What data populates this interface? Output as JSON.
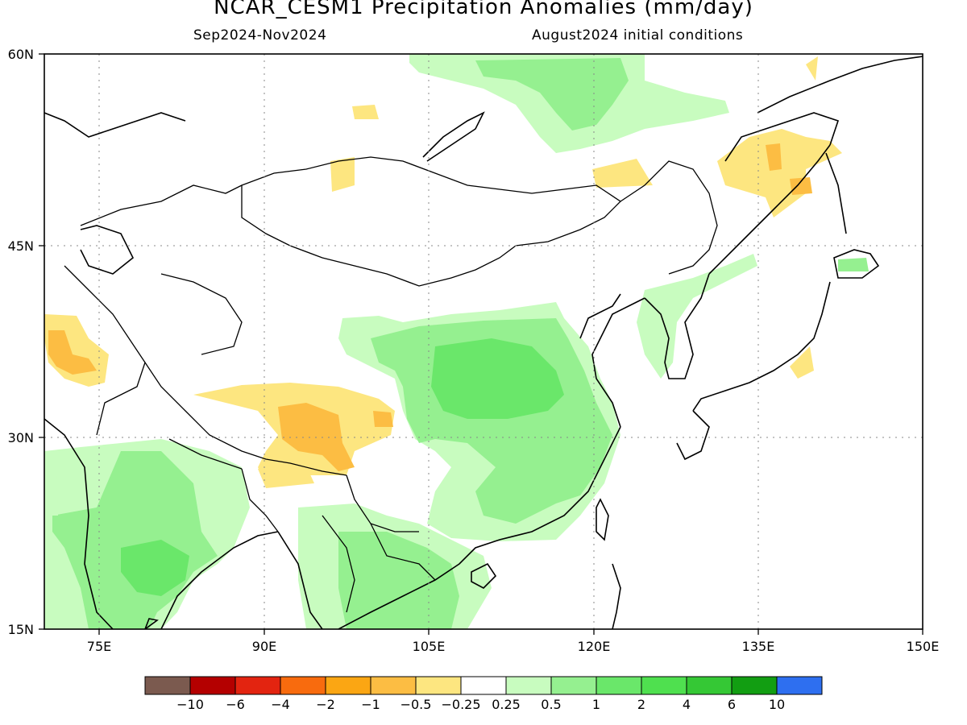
{
  "title": "NCAR_CESM1 Precipitation Anomalies (mm/day)",
  "season": "Sep2024-Nov2024",
  "init": "August2024 initial conditions",
  "axes": {
    "lat_labels": [
      "60N",
      "45N",
      "30N",
      "15N"
    ],
    "lon_labels": [
      "75E",
      "90E",
      "105E",
      "120E",
      "135E",
      "150E"
    ]
  },
  "colorbar": {
    "colors": [
      "#7b5a4f",
      "#b40000",
      "#e32410",
      "#f86b0e",
      "#fba613",
      "#fcbd43",
      "#fde680",
      "#ffffff",
      "#c8fcbf",
      "#95f090",
      "#6ae76a",
      "#4fe04f",
      "#35c835",
      "#129e12",
      "#2e6ff0"
    ],
    "labels": [
      "-10",
      "-6",
      "-4",
      "-2",
      "-1",
      "-0.5",
      "-0.25",
      "0.25",
      "0.5",
      "1",
      "2",
      "4",
      "6",
      "10"
    ]
  }
}
